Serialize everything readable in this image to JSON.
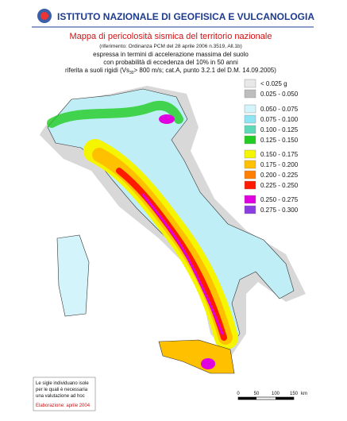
{
  "header": {
    "title": "ISTITUTO NAZIONALE DI GEOFISICA E VULCANOLOGIA"
  },
  "map": {
    "title": "Mappa di pericolosità sismica del territorio nazionale",
    "reference": "(riferimento: Ordinanza PCM del 28 aprile 2006 n.3519, All.1b)",
    "description": [
      "espressa in termini di accelerazione massima del suolo",
      "con probabilità di eccedenza del 10% in 50 anni"
    ],
    "soil": {
      "before": "riferita a suoli rigidi (Vs",
      "sub": "30",
      "after": "> 800 m/s; cat.A, punto 3.2.1 del D.M. 14.09.2005)"
    }
  },
  "legend": {
    "items": [
      {
        "label": "< 0.025 g",
        "color": "#e8e8e8"
      },
      {
        "label": "0.025 - 0.050",
        "color": "#bdbdbd"
      },
      {
        "label": "0.050 - 0.075",
        "color": "#d2f4fa"
      },
      {
        "label": "0.075 - 0.100",
        "color": "#8ee4f2"
      },
      {
        "label": "0.100 - 0.125",
        "color": "#5fd8b8"
      },
      {
        "label": "0.125 - 0.150",
        "color": "#22cc22"
      },
      {
        "label": "0.150 - 0.175",
        "color": "#f5f500"
      },
      {
        "label": "0.175 - 0.200",
        "color": "#ffc000"
      },
      {
        "label": "0.200 - 0.225",
        "color": "#ff8000"
      },
      {
        "label": "0.225 - 0.250",
        "color": "#ff1a00"
      },
      {
        "label": "0.250 - 0.275",
        "color": "#e000e0"
      },
      {
        "label": "0.275 - 0.300",
        "color": "#8a3ee0"
      }
    ]
  },
  "note": {
    "lines": [
      "Le sigle individuano isole",
      "per le quali è necessaria",
      "una valutazione ad hoc"
    ],
    "elaboration": "Elaborazione: aprile 2004"
  },
  "scale": {
    "labels": [
      "0",
      "50",
      "100",
      "150",
      "km"
    ]
  }
}
